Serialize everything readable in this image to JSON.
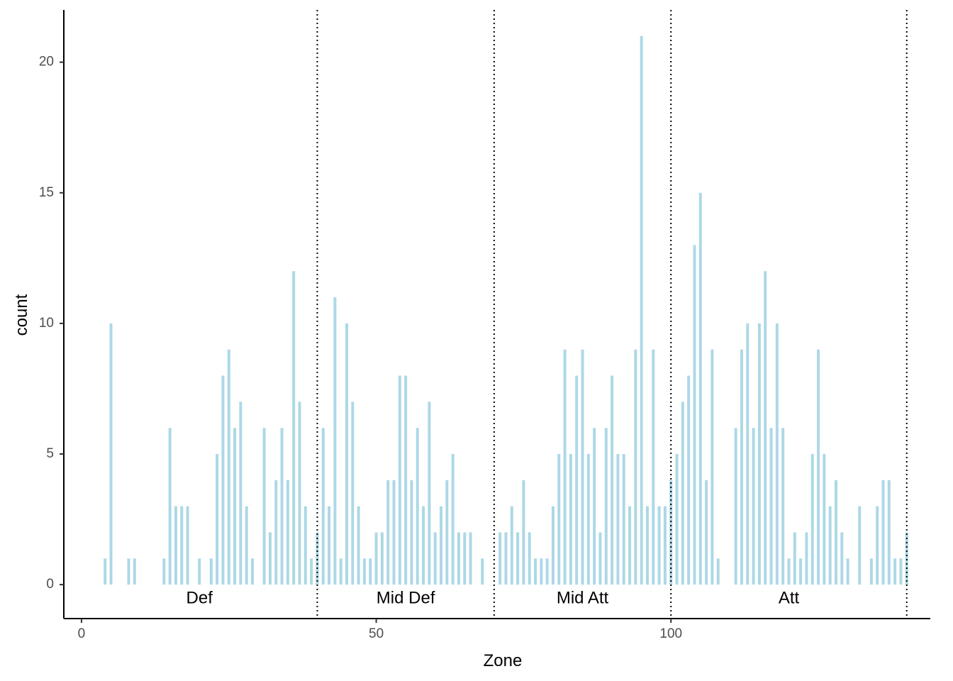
{
  "chart_data": {
    "type": "bar",
    "xlabel": "Zone",
    "ylabel": "count",
    "xlim": [
      -3,
      144
    ],
    "ylim": [
      -1.3,
      22
    ],
    "x_ticks": [
      0,
      50,
      100
    ],
    "y_ticks": [
      0,
      5,
      10,
      15,
      20
    ],
    "grid": false,
    "bar_color": "#add8e6",
    "divider_color": "#000000",
    "dividers": [
      40,
      70,
      100,
      140
    ],
    "zones": [
      {
        "label": "Def",
        "x": 20
      },
      {
        "label": "Mid Def",
        "x": 55
      },
      {
        "label": "Mid Att",
        "x": 85
      },
      {
        "label": "Att",
        "x": 120
      }
    ],
    "bars": [
      {
        "x": 4,
        "y": 1
      },
      {
        "x": 5,
        "y": 10
      },
      {
        "x": 8,
        "y": 1
      },
      {
        "x": 9,
        "y": 1
      },
      {
        "x": 14,
        "y": 1
      },
      {
        "x": 15,
        "y": 6
      },
      {
        "x": 16,
        "y": 3
      },
      {
        "x": 17,
        "y": 3
      },
      {
        "x": 18,
        "y": 3
      },
      {
        "x": 20,
        "y": 1
      },
      {
        "x": 22,
        "y": 1
      },
      {
        "x": 23,
        "y": 5
      },
      {
        "x": 24,
        "y": 8
      },
      {
        "x": 25,
        "y": 9
      },
      {
        "x": 26,
        "y": 6
      },
      {
        "x": 27,
        "y": 7
      },
      {
        "x": 28,
        "y": 3
      },
      {
        "x": 29,
        "y": 1
      },
      {
        "x": 31,
        "y": 6
      },
      {
        "x": 32,
        "y": 2
      },
      {
        "x": 33,
        "y": 4
      },
      {
        "x": 34,
        "y": 6
      },
      {
        "x": 35,
        "y": 4
      },
      {
        "x": 36,
        "y": 12
      },
      {
        "x": 37,
        "y": 7
      },
      {
        "x": 38,
        "y": 3
      },
      {
        "x": 39,
        "y": 1
      },
      {
        "x": 40,
        "y": 2
      },
      {
        "x": 41,
        "y": 6
      },
      {
        "x": 42,
        "y": 3
      },
      {
        "x": 43,
        "y": 11
      },
      {
        "x": 44,
        "y": 1
      },
      {
        "x": 45,
        "y": 10
      },
      {
        "x": 46,
        "y": 7
      },
      {
        "x": 47,
        "y": 3
      },
      {
        "x": 48,
        "y": 1
      },
      {
        "x": 49,
        "y": 1
      },
      {
        "x": 50,
        "y": 2
      },
      {
        "x": 51,
        "y": 2
      },
      {
        "x": 52,
        "y": 4
      },
      {
        "x": 53,
        "y": 4
      },
      {
        "x": 54,
        "y": 8
      },
      {
        "x": 55,
        "y": 8
      },
      {
        "x": 56,
        "y": 4
      },
      {
        "x": 57,
        "y": 6
      },
      {
        "x": 58,
        "y": 3
      },
      {
        "x": 59,
        "y": 7
      },
      {
        "x": 60,
        "y": 2
      },
      {
        "x": 61,
        "y": 3
      },
      {
        "x": 62,
        "y": 4
      },
      {
        "x": 63,
        "y": 5
      },
      {
        "x": 64,
        "y": 2
      },
      {
        "x": 65,
        "y": 2
      },
      {
        "x": 66,
        "y": 2
      },
      {
        "x": 68,
        "y": 1
      },
      {
        "x": 71,
        "y": 2
      },
      {
        "x": 72,
        "y": 2
      },
      {
        "x": 73,
        "y": 3
      },
      {
        "x": 74,
        "y": 2
      },
      {
        "x": 75,
        "y": 4
      },
      {
        "x": 76,
        "y": 2
      },
      {
        "x": 77,
        "y": 1
      },
      {
        "x": 78,
        "y": 1
      },
      {
        "x": 79,
        "y": 1
      },
      {
        "x": 80,
        "y": 3
      },
      {
        "x": 81,
        "y": 5
      },
      {
        "x": 82,
        "y": 9
      },
      {
        "x": 83,
        "y": 5
      },
      {
        "x": 84,
        "y": 8
      },
      {
        "x": 85,
        "y": 9
      },
      {
        "x": 86,
        "y": 5
      },
      {
        "x": 87,
        "y": 6
      },
      {
        "x": 88,
        "y": 2
      },
      {
        "x": 89,
        "y": 6
      },
      {
        "x": 90,
        "y": 8
      },
      {
        "x": 91,
        "y": 5
      },
      {
        "x": 92,
        "y": 5
      },
      {
        "x": 93,
        "y": 3
      },
      {
        "x": 94,
        "y": 9
      },
      {
        "x": 95,
        "y": 21
      },
      {
        "x": 96,
        "y": 3
      },
      {
        "x": 97,
        "y": 9
      },
      {
        "x": 98,
        "y": 3
      },
      {
        "x": 99,
        "y": 3
      },
      {
        "x": 100,
        "y": 4
      },
      {
        "x": 101,
        "y": 5
      },
      {
        "x": 102,
        "y": 7
      },
      {
        "x": 103,
        "y": 8
      },
      {
        "x": 104,
        "y": 13
      },
      {
        "x": 105,
        "y": 15
      },
      {
        "x": 106,
        "y": 4
      },
      {
        "x": 107,
        "y": 9
      },
      {
        "x": 108,
        "y": 1
      },
      {
        "x": 111,
        "y": 6
      },
      {
        "x": 112,
        "y": 9
      },
      {
        "x": 113,
        "y": 10
      },
      {
        "x": 114,
        "y": 6
      },
      {
        "x": 115,
        "y": 10
      },
      {
        "x": 116,
        "y": 12
      },
      {
        "x": 117,
        "y": 6
      },
      {
        "x": 118,
        "y": 10
      },
      {
        "x": 119,
        "y": 6
      },
      {
        "x": 120,
        "y": 1
      },
      {
        "x": 121,
        "y": 2
      },
      {
        "x": 122,
        "y": 1
      },
      {
        "x": 123,
        "y": 2
      },
      {
        "x": 124,
        "y": 5
      },
      {
        "x": 125,
        "y": 9
      },
      {
        "x": 126,
        "y": 5
      },
      {
        "x": 127,
        "y": 3
      },
      {
        "x": 128,
        "y": 4
      },
      {
        "x": 129,
        "y": 2
      },
      {
        "x": 130,
        "y": 1
      },
      {
        "x": 132,
        "y": 3
      },
      {
        "x": 134,
        "y": 1
      },
      {
        "x": 135,
        "y": 3
      },
      {
        "x": 136,
        "y": 4
      },
      {
        "x": 137,
        "y": 4
      },
      {
        "x": 138,
        "y": 1
      },
      {
        "x": 139,
        "y": 1
      },
      {
        "x": 140,
        "y": 2
      }
    ]
  }
}
